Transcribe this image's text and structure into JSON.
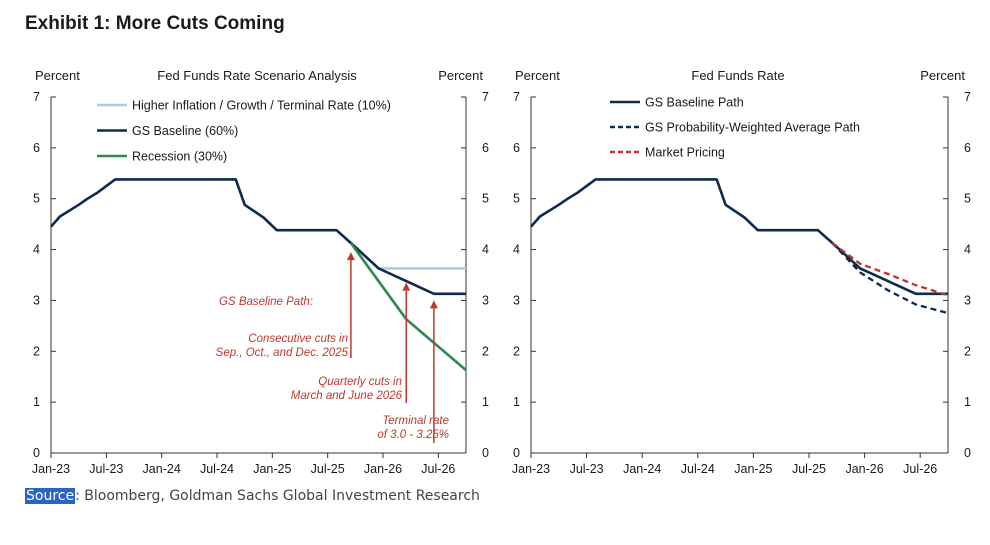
{
  "exhibit_title": "Exhibit 1: More Cuts Coming",
  "source": {
    "label": "Source",
    "text": ": Bloomberg, Goldman Sachs Global Investment Research"
  },
  "colors": {
    "inflation": "#a9cde9",
    "baseline": "#0d2b4e",
    "recession": "#2d8a4e",
    "market": "#c9302c",
    "annotation": "#c0392b",
    "axis": "#333333"
  },
  "chart_data": [
    {
      "type": "line",
      "title": "Fed Funds Rate  Scenario  Analysis",
      "ylabel_left": "Percent",
      "ylabel_right": "Percent",
      "xlim": [
        2023.0,
        2026.75
      ],
      "ylim": [
        0,
        7
      ],
      "yticks": [
        0,
        1,
        2,
        3,
        4,
        5,
        6,
        7
      ],
      "xticks": [
        {
          "x": 2023.0,
          "label": "Jan-23"
        },
        {
          "x": 2023.5,
          "label": "Jul-23"
        },
        {
          "x": 2024.0,
          "label": "Jan-24"
        },
        {
          "x": 2024.5,
          "label": "Jul-24"
        },
        {
          "x": 2025.0,
          "label": "Jan-25"
        },
        {
          "x": 2025.5,
          "label": "Jul-25"
        },
        {
          "x": 2026.0,
          "label": "Jan-26"
        },
        {
          "x": 2026.5,
          "label": "Jul-26"
        }
      ],
      "legend_position": "top-left",
      "series": [
        {
          "name": "Higher Inflation / Growth / Terminal Rate (10%)",
          "color_key": "inflation",
          "dash": false,
          "x": [
            2025.71,
            2025.96,
            2026.75
          ],
          "y": [
            4.13,
            3.63,
            3.63
          ]
        },
        {
          "name": "GS Baseline (60%)",
          "color_key": "baseline",
          "dash": false,
          "x": [
            2023.0,
            2023.08,
            2023.25,
            2023.33,
            2023.42,
            2023.58,
            2024.67,
            2024.75,
            2024.92,
            2025.04,
            2025.25,
            2025.5,
            2025.58,
            2025.71,
            2025.96,
            2026.21,
            2026.46,
            2026.75
          ],
          "y": [
            4.45,
            4.65,
            4.88,
            5.0,
            5.12,
            5.38,
            5.38,
            4.88,
            4.63,
            4.38,
            4.38,
            4.38,
            4.38,
            4.13,
            3.63,
            3.38,
            3.13,
            3.13
          ]
        },
        {
          "name": "Recession (30%)",
          "color_key": "recession",
          "dash": false,
          "x": [
            2025.71,
            2026.21,
            2026.75
          ],
          "y": [
            4.13,
            2.63,
            1.63
          ]
        }
      ],
      "annotations": [
        {
          "lines": [
            "GS Baseline Path:"
          ],
          "arrow": false
        },
        {
          "lines": [
            "Consecutive cuts in",
            "Sep., Oct.,  and Dec. 2025"
          ],
          "arrow_x": 2025.71,
          "arrow_y": 3.95
        },
        {
          "lines": [
            "Quarterly cuts in",
            "March and June 2026"
          ],
          "arrow_x": 2026.21,
          "arrow_y": 3.35
        },
        {
          "lines": [
            "Terminal rate",
            "of 3.0 - 3.25%"
          ],
          "arrow_x": 2026.46,
          "arrow_y": 3.0
        }
      ]
    },
    {
      "type": "line",
      "title": "Fed Funds Rate",
      "ylabel_left": "Percent",
      "ylabel_right": "Percent",
      "xlim": [
        2023.0,
        2026.75
      ],
      "ylim": [
        0,
        7
      ],
      "yticks": [
        0,
        1,
        2,
        3,
        4,
        5,
        6,
        7
      ],
      "xticks": [
        {
          "x": 2023.0,
          "label": "Jan-23"
        },
        {
          "x": 2023.5,
          "label": "Jul-23"
        },
        {
          "x": 2024.0,
          "label": "Jan-24"
        },
        {
          "x": 2024.5,
          "label": "Jul-24"
        },
        {
          "x": 2025.0,
          "label": "Jan-25"
        },
        {
          "x": 2025.5,
          "label": "Jul-25"
        },
        {
          "x": 2026.0,
          "label": "Jan-26"
        },
        {
          "x": 2026.5,
          "label": "Jul-26"
        }
      ],
      "legend_position": "top-left",
      "series": [
        {
          "name": "GS Baseline Path",
          "color_key": "baseline",
          "dash": false,
          "x": [
            2023.0,
            2023.08,
            2023.25,
            2023.33,
            2023.42,
            2023.58,
            2024.67,
            2024.75,
            2024.92,
            2025.04,
            2025.25,
            2025.5,
            2025.58,
            2025.71,
            2025.96,
            2026.21,
            2026.46,
            2026.75
          ],
          "y": [
            4.45,
            4.65,
            4.88,
            5.0,
            5.12,
            5.38,
            5.38,
            4.88,
            4.63,
            4.38,
            4.38,
            4.38,
            4.38,
            4.13,
            3.63,
            3.38,
            3.13,
            3.13
          ]
        },
        {
          "name": "GS Probability-Weighted Average Path",
          "color_key": "baseline",
          "dash": true,
          "x": [
            2025.71,
            2025.96,
            2026.21,
            2026.46,
            2026.75
          ],
          "y": [
            4.13,
            3.55,
            3.2,
            2.92,
            2.75
          ]
        },
        {
          "name": "Market Pricing",
          "color_key": "market",
          "dash": true,
          "x": [
            2025.71,
            2025.96,
            2026.21,
            2026.46,
            2026.75
          ],
          "y": [
            4.13,
            3.72,
            3.52,
            3.3,
            3.1
          ]
        }
      ],
      "annotations": []
    }
  ]
}
